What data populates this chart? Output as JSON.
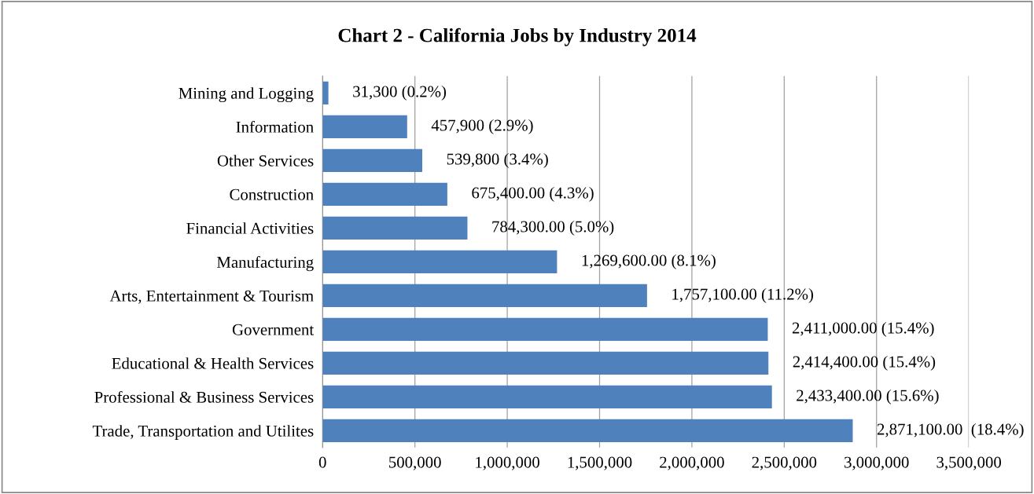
{
  "chart_data": {
    "type": "bar",
    "orientation": "horizontal",
    "title": "Chart 2 - California Jobs by Industry 2014",
    "categories": [
      "Mining and Logging",
      "Information",
      "Other Services",
      "Construction",
      "Financial Activities",
      "Manufacturing",
      "Arts, Entertainment & Tourism",
      "Government",
      "Educational & Health Services",
      "Professional & Business Services",
      "Trade, Transportation and Utilites"
    ],
    "values": [
      31300,
      457900,
      539800,
      675400,
      784300,
      1269600,
      1757100,
      2411000,
      2414400,
      2433400,
      2871100
    ],
    "value_labels": [
      "31,300 (0.2%)",
      "457,900 (2.9%)",
      "539,800 (3.4%)",
      "675,400.00 (4.3%)",
      "784,300.00 (5.0%)",
      "1,269,600.00 (8.1%)",
      "1,757,100.00 (11.2%)",
      "2,411,000.00 (15.4%)",
      "2,414,400.00 (15.4%)",
      "2,433,400.00 (15.6%)",
      "2,871,100.00  (18.4%)"
    ],
    "color": "#4f81bd",
    "xlim": [
      0,
      3500000
    ],
    "xticks": [
      0,
      {
        "value": 500000,
        "label": "500,000"
      },
      {
        "value": 1000000,
        "label": "1,000,000"
      },
      {
        "value": 1500000,
        "label": "1,500,000"
      },
      {
        "value": 2000000,
        "label": "2,000,000"
      },
      {
        "value": 2500000,
        "label": "2,500,000"
      },
      {
        "value": 3000000,
        "label": "3,000,000"
      },
      {
        "value": 3500000,
        "label": "3,500,000"
      }
    ],
    "grid": "x",
    "legend": false
  }
}
